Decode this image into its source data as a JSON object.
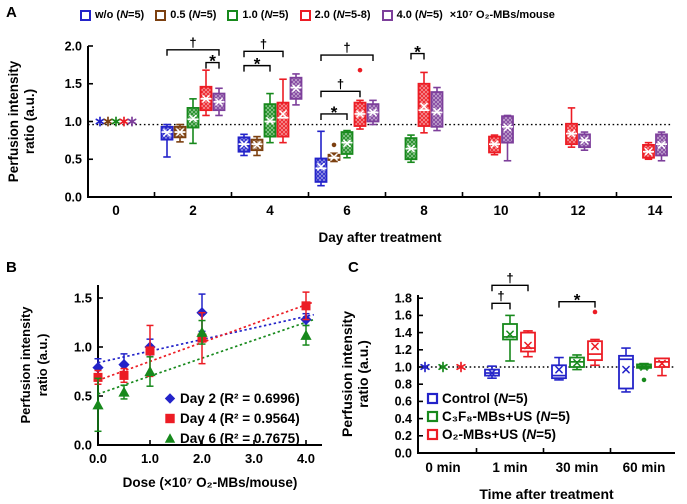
{
  "panels": {
    "a": {
      "label": "A"
    },
    "b": {
      "label": "B"
    },
    "c": {
      "label": "C"
    }
  },
  "chart_data": [
    {
      "id": "A",
      "type": "boxplot",
      "xlabel": "Day after treatment",
      "ylabel": [
        "Perfusion intensity",
        "ratio (a.u.)"
      ],
      "ylim": [
        0.0,
        2.0
      ],
      "yticks": [
        "0.0",
        "0.5",
        "1.0",
        "1.5",
        "2.0"
      ],
      "categories": [
        "0",
        "2",
        "4",
        "6",
        "8",
        "10",
        "12",
        "14"
      ],
      "reference_line_y": 0.96,
      "legend": {
        "position": "top",
        "items": [
          {
            "label": "w/o (N=5)",
            "color": "#2323c9"
          },
          {
            "label": "0.5 (N=5)",
            "color": "#7c4010"
          },
          {
            "label": "1.0 (N=5)",
            "color": "#17891c"
          },
          {
            "label": "2.0 (N=5-8)",
            "color": "#ec1c24"
          },
          {
            "label": "4.0 (N=5)",
            "color": "#7d3f9b"
          }
        ],
        "suffix": "×10⁷ O₂-MBs/mouse"
      },
      "group_colors": [
        "#2323c9",
        "#7c4010",
        "#17891c",
        "#ec1c24",
        "#7d3f9b"
      ],
      "points": [
        {
          "category": "0",
          "group": 0,
          "value": 1.0
        },
        {
          "category": "0",
          "group": 1,
          "value": 1.0
        },
        {
          "category": "0",
          "group": 2,
          "value": 1.0
        },
        {
          "category": "0",
          "group": 3,
          "value": 1.0
        },
        {
          "category": "0",
          "group": 4,
          "value": 1.0
        }
      ],
      "boxes": [
        {
          "category": "2",
          "group": 0,
          "lo": 0.53,
          "q1": 0.76,
          "med": 0.86,
          "q3": 0.93,
          "hi": 0.96,
          "mean": 0.85
        },
        {
          "category": "2",
          "group": 1,
          "lo": 0.73,
          "q1": 0.79,
          "med": 0.86,
          "q3": 0.93,
          "hi": 0.96,
          "mean": 0.86
        },
        {
          "category": "2",
          "group": 2,
          "lo": 0.71,
          "q1": 0.92,
          "med": 1.03,
          "q3": 1.18,
          "hi": 1.3,
          "mean": 1.04
        },
        {
          "category": "2",
          "group": 3,
          "lo": 1.08,
          "q1": 1.15,
          "med": 1.3,
          "q3": 1.46,
          "hi": 1.68,
          "mean": 1.3
        },
        {
          "category": "2",
          "group": 4,
          "lo": 1.08,
          "q1": 1.15,
          "med": 1.26,
          "q3": 1.37,
          "hi": 1.44,
          "mean": 1.26
        },
        {
          "category": "4",
          "group": 0,
          "lo": 0.55,
          "q1": 0.6,
          "med": 0.7,
          "q3": 0.79,
          "hi": 0.83,
          "mean": 0.7
        },
        {
          "category": "4",
          "group": 1,
          "lo": 0.55,
          "q1": 0.62,
          "med": 0.7,
          "q3": 0.76,
          "hi": 0.8,
          "mean": 0.69
        },
        {
          "category": "4",
          "group": 2,
          "lo": 0.72,
          "q1": 0.8,
          "med": 1.0,
          "q3": 1.23,
          "hi": 1.37,
          "mean": 1.01
        },
        {
          "category": "4",
          "group": 3,
          "lo": 0.72,
          "q1": 0.8,
          "med": 1.05,
          "q3": 1.25,
          "hi": 1.56,
          "mean": 1.1
        },
        {
          "category": "4",
          "group": 4,
          "lo": 1.22,
          "q1": 1.3,
          "med": 1.45,
          "q3": 1.58,
          "hi": 1.63,
          "mean": 1.44
        },
        {
          "category": "6",
          "group": 0,
          "lo": 0.15,
          "q1": 0.2,
          "med": 0.38,
          "q3": 0.51,
          "hi": 0.87,
          "mean": 0.4
        },
        {
          "category": "6",
          "group": 1,
          "lo": 0.47,
          "q1": 0.49,
          "med": 0.52,
          "q3": 0.56,
          "hi": 0.58,
          "mean": 0.53,
          "outliers": [
            0.69
          ]
        },
        {
          "category": "6",
          "group": 2,
          "lo": 0.52,
          "q1": 0.57,
          "med": 0.72,
          "q3": 0.86,
          "hi": 0.88,
          "mean": 0.71
        },
        {
          "category": "6",
          "group": 3,
          "lo": 0.9,
          "q1": 0.94,
          "med": 1.1,
          "q3": 1.25,
          "hi": 1.28,
          "mean": 1.1,
          "outliers": [
            1.68
          ]
        },
        {
          "category": "6",
          "group": 4,
          "lo": 0.96,
          "q1": 1.0,
          "med": 1.12,
          "q3": 1.23,
          "hi": 1.28,
          "mean": 1.12
        },
        {
          "category": "8",
          "group": 2,
          "lo": 0.46,
          "q1": 0.5,
          "med": 0.64,
          "q3": 0.78,
          "hi": 0.82,
          "mean": 0.64
        },
        {
          "category": "8",
          "group": 3,
          "lo": 0.85,
          "q1": 0.94,
          "med": 1.15,
          "q3": 1.5,
          "hi": 1.65,
          "mean": 1.2
        },
        {
          "category": "8",
          "group": 4,
          "lo": 0.88,
          "q1": 0.93,
          "med": 1.12,
          "q3": 1.39,
          "hi": 1.45,
          "mean": 1.13
        },
        {
          "category": "10",
          "group": 3,
          "lo": 0.56,
          "q1": 0.59,
          "med": 0.7,
          "q3": 0.8,
          "hi": 0.82,
          "mean": 0.7
        },
        {
          "category": "10",
          "group": 4,
          "lo": 0.48,
          "q1": 0.72,
          "med": 0.93,
          "q3": 1.07,
          "hi": 1.08,
          "mean": 0.92
        },
        {
          "category": "12",
          "group": 3,
          "lo": 0.66,
          "q1": 0.7,
          "med": 0.84,
          "q3": 0.97,
          "hi": 1.18,
          "mean": 0.84
        },
        {
          "category": "12",
          "group": 4,
          "lo": 0.62,
          "q1": 0.66,
          "med": 0.75,
          "q3": 0.83,
          "hi": 0.86,
          "mean": 0.75
        },
        {
          "category": "14",
          "group": 3,
          "lo": 0.5,
          "q1": 0.52,
          "med": 0.6,
          "q3": 0.69,
          "hi": 0.72,
          "mean": 0.6
        },
        {
          "category": "14",
          "group": 4,
          "lo": 0.48,
          "q1": 0.55,
          "med": 0.7,
          "q3": 0.83,
          "hi": 0.86,
          "mean": 0.69
        }
      ],
      "significance": [
        {
          "category": "2",
          "from": 0,
          "to": 4,
          "y": 1.95,
          "label": "†"
        },
        {
          "category": "2",
          "from": 3,
          "to": 4,
          "y": 1.78,
          "label": "*"
        },
        {
          "category": "4",
          "from": 0,
          "to": 3,
          "y": 1.93,
          "label": "†"
        },
        {
          "category": "4",
          "from": 0,
          "to": 2,
          "y": 1.74,
          "label": "*"
        },
        {
          "category": "6",
          "from": 0,
          "to": 4,
          "y": 1.88,
          "label": "†"
        },
        {
          "category": "6",
          "from": 0,
          "to": 3,
          "y": 1.4,
          "label": "†"
        },
        {
          "category": "6",
          "from": 0,
          "to": 2,
          "y": 1.1,
          "label": "*"
        },
        {
          "category": "8",
          "from": 2,
          "to": 3,
          "y": 1.9,
          "label": "*"
        }
      ]
    },
    {
      "id": "B",
      "type": "scatter",
      "xlabel": "Dose (×10⁷ O₂-MBs/mouse)",
      "ylabel": [
        "Perfusion intensity",
        "ratio (a.u.)"
      ],
      "xticks": [
        "0.0",
        "1.0",
        "2.0",
        "3.0",
        "4.0"
      ],
      "yticks": [
        "0.0",
        "0.5",
        "1.0",
        "1.5"
      ],
      "x": [
        0,
        0.5,
        1.0,
        2.0,
        4.0
      ],
      "series": [
        {
          "name": "Day 2",
          "r2_label": "(R² = 0.6996)",
          "color": "#2323c9",
          "marker": "diamond",
          "values": [
            0.79,
            0.82,
            1.0,
            1.35,
            1.28
          ],
          "errors": [
            0.09,
            0.11,
            0.08,
            0.19,
            0.06
          ],
          "trend": [
            0.84,
            1.33
          ]
        },
        {
          "name": "Day 4",
          "r2_label": "(R² = 0.9564)",
          "color": "#ec1c24",
          "marker": "square",
          "values": [
            0.69,
            0.71,
            0.96,
            1.09,
            1.42
          ],
          "errors": [
            0.07,
            0.07,
            0.26,
            0.26,
            0.14
          ],
          "trend": [
            0.66,
            1.46
          ]
        },
        {
          "name": "Day 6",
          "r2_label": "(R² = 0.7675)",
          "color": "#17891c",
          "marker": "triangle",
          "values": [
            0.41,
            0.54,
            0.75,
            1.15,
            1.12
          ],
          "errors": [
            0.27,
            0.07,
            0.15,
            0.12,
            0.1
          ],
          "trend": [
            0.52,
            1.28
          ]
        }
      ]
    },
    {
      "id": "C",
      "type": "boxplot",
      "xlabel": "Time after treatment",
      "ylabel": [
        "Perfusion intensity",
        "ratio (a.u.)"
      ],
      "ylim": [
        0.0,
        1.8
      ],
      "yticks": [
        "0.0",
        "0.2",
        "0.4",
        "0.6",
        "0.8",
        "1.0",
        "1.2",
        "1.4",
        "1.6",
        "1.8"
      ],
      "categories": [
        "0 min",
        "1 min",
        "30 min",
        "60 min"
      ],
      "reference_line_y": 1.0,
      "legend": {
        "position": "inside-left",
        "items": [
          {
            "label": "Control (N=5)",
            "color": "#2323c9"
          },
          {
            "label": "C₃F₈-MBs+US (N=5)",
            "color": "#17891c"
          },
          {
            "label": "O₂-MBs+US (N=5)",
            "color": "#ec1c24"
          }
        ]
      },
      "group_colors": [
        "#2323c9",
        "#17891c",
        "#ec1c24"
      ],
      "points": [
        {
          "category": "0 min",
          "group": 0,
          "value": 1.0
        },
        {
          "category": "0 min",
          "group": 1,
          "value": 1.0
        },
        {
          "category": "0 min",
          "group": 2,
          "value": 1.0
        }
      ],
      "boxes": [
        {
          "category": "1 min",
          "group": 0,
          "lo": 0.87,
          "q1": 0.9,
          "med": 0.93,
          "q3": 0.97,
          "hi": 1.01,
          "mean": 0.93
        },
        {
          "category": "1 min",
          "group": 1,
          "lo": 1.07,
          "q1": 1.32,
          "med": 1.35,
          "q3": 1.5,
          "hi": 1.6,
          "mean": 1.38
        },
        {
          "category": "1 min",
          "group": 2,
          "lo": 1.12,
          "q1": 1.18,
          "med": 1.22,
          "q3": 1.4,
          "hi": 1.42,
          "mean": 1.25
        },
        {
          "category": "30 min",
          "group": 0,
          "lo": 0.85,
          "q1": 0.87,
          "med": 0.9,
          "q3": 1.02,
          "hi": 1.11,
          "mean": 0.97
        },
        {
          "category": "30 min",
          "group": 1,
          "lo": 0.97,
          "q1": 1.0,
          "med": 1.06,
          "q3": 1.11,
          "hi": 1.14,
          "mean": 1.05
        },
        {
          "category": "30 min",
          "group": 2,
          "lo": 1.02,
          "q1": 1.08,
          "med": 1.15,
          "q3": 1.3,
          "hi": 1.32,
          "mean": 1.24,
          "outliers": [
            1.64
          ]
        },
        {
          "category": "60 min",
          "group": 0,
          "lo": 0.71,
          "q1": 0.75,
          "med": 1.09,
          "q3": 1.13,
          "hi": 1.22,
          "mean": 0.97
        },
        {
          "category": "60 min",
          "group": 1,
          "lo": 0.98,
          "q1": 0.99,
          "med": 1.01,
          "q3": 1.03,
          "hi": 1.04,
          "mean": 1.0,
          "outliers": [
            0.85
          ]
        },
        {
          "category": "60 min",
          "group": 2,
          "lo": 0.9,
          "q1": 1.0,
          "med": 1.06,
          "q3": 1.1,
          "hi": 1.1,
          "mean": 1.04
        }
      ],
      "significance": [
        {
          "category": "1 min",
          "from": 0,
          "to": 1,
          "y": 1.74,
          "label": "†"
        },
        {
          "category": "1 min",
          "from": 0,
          "to": 2,
          "y": 1.95,
          "label": "†"
        },
        {
          "category": "30 min",
          "from": 0,
          "to": 2,
          "y": 1.76,
          "label": "*"
        }
      ]
    }
  ]
}
